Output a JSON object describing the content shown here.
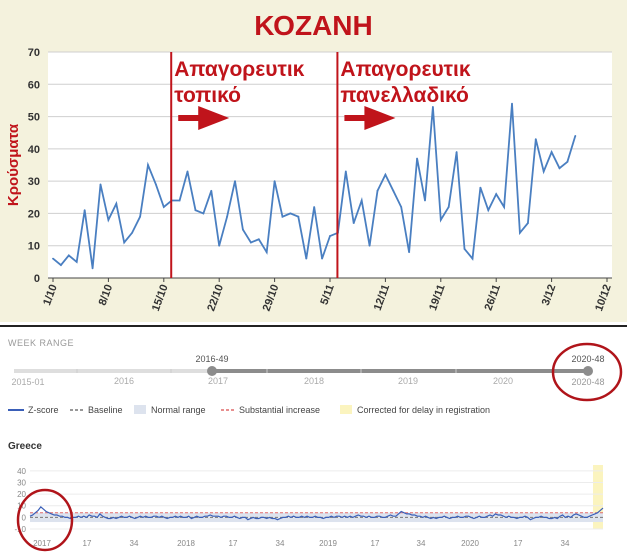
{
  "top_panel": {
    "title": "ΚΟΖΑΝΗ",
    "ylabel": "Κρούσματα",
    "annotations": [
      {
        "label": "Απαγορευτικ τοπικό",
        "line1": "Απαγορευτικ",
        "line2": "τοπικό",
        "at_x": "16/10"
      },
      {
        "label": "Απαγορευτικ πανελλαδικό",
        "line1": "Απαγορευτικ",
        "line2": "πανελλαδικό",
        "at_x": "6/11"
      }
    ],
    "colors": {
      "line": "#4a7fc1",
      "accent": "#c0141b",
      "panel_bg": "#f4f2dd"
    }
  },
  "bottom_panel": {
    "week_range_label": "WEEK RANGE",
    "range_start_label": "2016-49",
    "range_end_label": "2020-48",
    "range_end_label_below": "2020-48",
    "range_min_label": "2015-01",
    "year_ticks": [
      "2016",
      "2017",
      "2018",
      "2019",
      "2020"
    ],
    "legend": [
      "Z-score",
      "Baseline",
      "Normal range",
      "Substantial increase",
      "Corrected for delay in registration"
    ],
    "country": "Greece",
    "colors": {
      "zscore": "#3a5fb8",
      "baseline": "#777777",
      "normal_range": "#dde3ee",
      "substantial": "#e06a6a",
      "correction": "#fbf4bf",
      "circle": "#b0141a"
    }
  },
  "chart_data": [
    {
      "type": "line",
      "title": "ΚΟΖΑΝΗ",
      "ylabel": "Κρούσματα",
      "xlabel": "",
      "x": [
        "1/10",
        "2/10",
        "3/10",
        "4/10",
        "5/10",
        "6/10",
        "7/10",
        "8/10",
        "9/10",
        "10/10",
        "11/10",
        "12/10",
        "13/10",
        "14/10",
        "15/10",
        "16/10",
        "17/10",
        "18/10",
        "19/10",
        "20/10",
        "21/10",
        "22/10",
        "23/10",
        "24/10",
        "25/10",
        "26/10",
        "27/10",
        "28/10",
        "29/10",
        "30/10",
        "31/10",
        "1/11",
        "2/11",
        "3/11",
        "4/11",
        "5/11",
        "6/11",
        "7/11",
        "8/11",
        "9/11",
        "10/11",
        "11/11",
        "12/11",
        "13/11",
        "14/11",
        "15/11",
        "16/11",
        "17/11",
        "18/11",
        "19/11",
        "20/11",
        "21/11",
        "22/11",
        "23/11",
        "24/11",
        "25/11",
        "26/11",
        "27/11",
        "28/11",
        "29/11",
        "30/11",
        "1/12",
        "2/12",
        "3/12",
        "4/12",
        "5/12",
        "6/12"
      ],
      "y": [
        6,
        4,
        7,
        5,
        21,
        3,
        29,
        18,
        23,
        11,
        14,
        19,
        35,
        29,
        22,
        24,
        24,
        33,
        21,
        20,
        27,
        10,
        19,
        30,
        15,
        11,
        12,
        8,
        30,
        19,
        20,
        19,
        6,
        22,
        6,
        13,
        14,
        33,
        17,
        24,
        10,
        27,
        32,
        27,
        22,
        8,
        37,
        24,
        53,
        18,
        22,
        39,
        9,
        6,
        28,
        21,
        26,
        22,
        54,
        14,
        17,
        43,
        33,
        39,
        34,
        36,
        44
      ],
      "x_tick_labels": [
        "1/10",
        "8/10",
        "15/10",
        "22/10",
        "29/10",
        "5/11",
        "12/11",
        "19/11",
        "26/11",
        "3/12",
        "10/12"
      ],
      "y_ticks": [
        0,
        10,
        20,
        30,
        40,
        50,
        60,
        70
      ],
      "ylim": [
        0,
        70
      ],
      "grid": true
    },
    {
      "type": "line",
      "title": "Greece",
      "series": [
        {
          "name": "Z-score"
        }
      ],
      "x_tick_labels": [
        "2017",
        "17",
        "34",
        "2018",
        "17",
        "34",
        "2019",
        "17",
        "34",
        "2020",
        "17",
        "34"
      ],
      "y_ticks": [
        -10,
        0,
        10,
        20,
        30,
        40
      ],
      "ylim": [
        -10,
        45
      ],
      "values": [
        1,
        2,
        4,
        6,
        9,
        7,
        5,
        4,
        3,
        2,
        2,
        1,
        1,
        0,
        0,
        -1,
        0,
        0,
        1,
        0,
        1,
        0,
        2,
        1,
        1,
        0,
        3,
        1,
        0,
        -1,
        -1,
        0,
        -1,
        0,
        1,
        0,
        0,
        1,
        0,
        -1,
        0,
        1,
        0,
        1,
        0,
        0,
        1,
        1,
        0,
        1,
        0,
        -1,
        0,
        0,
        1,
        0,
        1,
        0,
        0,
        1,
        -1,
        0,
        1,
        0,
        0,
        1,
        1,
        2,
        1,
        1,
        1,
        0,
        1,
        1,
        0,
        0,
        1,
        0,
        -1,
        0,
        0,
        -2,
        -1,
        0,
        -1,
        -1,
        0,
        0,
        -1,
        0,
        -1,
        -1,
        -2,
        -1,
        0,
        0,
        1,
        0,
        1,
        0,
        0,
        1,
        0,
        1,
        0,
        0,
        1,
        0,
        0,
        -1,
        0,
        0,
        1,
        0,
        1,
        1,
        0,
        1,
        0,
        1,
        0,
        1,
        2,
        1,
        1,
        0,
        1,
        0,
        0,
        1,
        1,
        0,
        0,
        1,
        2,
        1,
        1,
        3,
        5,
        4,
        3,
        3,
        2,
        2,
        1,
        1,
        0,
        1,
        0,
        -1,
        0,
        -1,
        0,
        0,
        1,
        0,
        -1,
        0,
        0,
        1,
        0,
        0,
        1,
        1,
        0,
        -1,
        0,
        1,
        0,
        0,
        1,
        2,
        1,
        3,
        2,
        2,
        1,
        0,
        1,
        0,
        0,
        -1,
        0,
        0,
        1,
        0,
        -2,
        -1,
        0,
        0,
        1,
        0,
        0,
        -1,
        -1,
        0,
        -1,
        1,
        2,
        0,
        1,
        0,
        2,
        3,
        2,
        1,
        0,
        0,
        1,
        2,
        3,
        4,
        6,
        8
      ]
    }
  ]
}
